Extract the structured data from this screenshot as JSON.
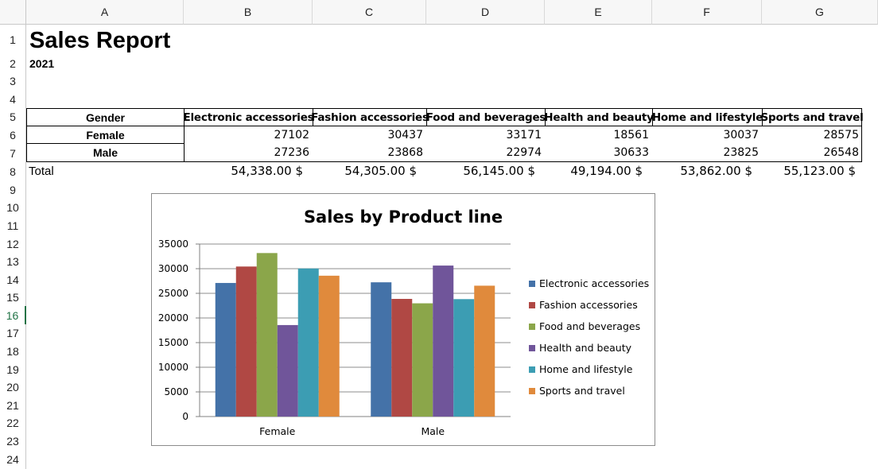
{
  "spreadsheet": {
    "column_headers": [
      "A",
      "B",
      "C",
      "D",
      "E",
      "F",
      "G"
    ],
    "row_headers": [
      "1",
      "2",
      "3",
      "4",
      "5",
      "6",
      "7",
      "8",
      "9",
      "10",
      "11",
      "12",
      "13",
      "14",
      "15",
      "16",
      "17",
      "18",
      "19",
      "20",
      "21",
      "22",
      "23",
      "24"
    ],
    "selected_row": "16",
    "title": "Sales Report",
    "year": "2021",
    "table": {
      "header_gender": "Gender",
      "product_lines": [
        "Electronic accessories",
        "Fashion accessories",
        "Food and beverages",
        "Health and beauty",
        "Home and lifestyle",
        "Sports and travel"
      ],
      "rows": [
        {
          "label": "Female",
          "values": [
            "27102",
            "30437",
            "33171",
            "18561",
            "30037",
            "28575"
          ]
        },
        {
          "label": "Male",
          "values": [
            "27236",
            "23868",
            "22974",
            "30633",
            "23825",
            "26548"
          ]
        }
      ],
      "total_label": "Total",
      "totals": [
        "54,338.00 $",
        "54,305.00 $",
        "56,145.00 $",
        "49,194.00 $",
        "53,862.00 $",
        "55,123.00 $"
      ]
    }
  },
  "chart_data": {
    "type": "bar",
    "title": "Sales by Product line",
    "categories": [
      "Female",
      "Male"
    ],
    "series": [
      {
        "name": "Electronic accessories",
        "values": [
          27102,
          27236
        ],
        "color": "#4472a8"
      },
      {
        "name": "Fashion accessories",
        "values": [
          30437,
          23868
        ],
        "color": "#b04844"
      },
      {
        "name": "Food and beverages",
        "values": [
          33171,
          22974
        ],
        "color": "#8ba64a"
      },
      {
        "name": "Health and beauty",
        "values": [
          18561,
          30633
        ],
        "color": "#70559a"
      },
      {
        "name": "Home and lifestyle",
        "values": [
          30037,
          23825
        ],
        "color": "#3c9db3"
      },
      {
        "name": "Sports and travel",
        "values": [
          28575,
          26548
        ],
        "color": "#e08a3c"
      }
    ],
    "ylim": [
      0,
      35000
    ],
    "yticks": [
      "0",
      "5000",
      "10000",
      "15000",
      "20000",
      "25000",
      "30000",
      "35000"
    ],
    "grid": true,
    "legend": "right"
  }
}
